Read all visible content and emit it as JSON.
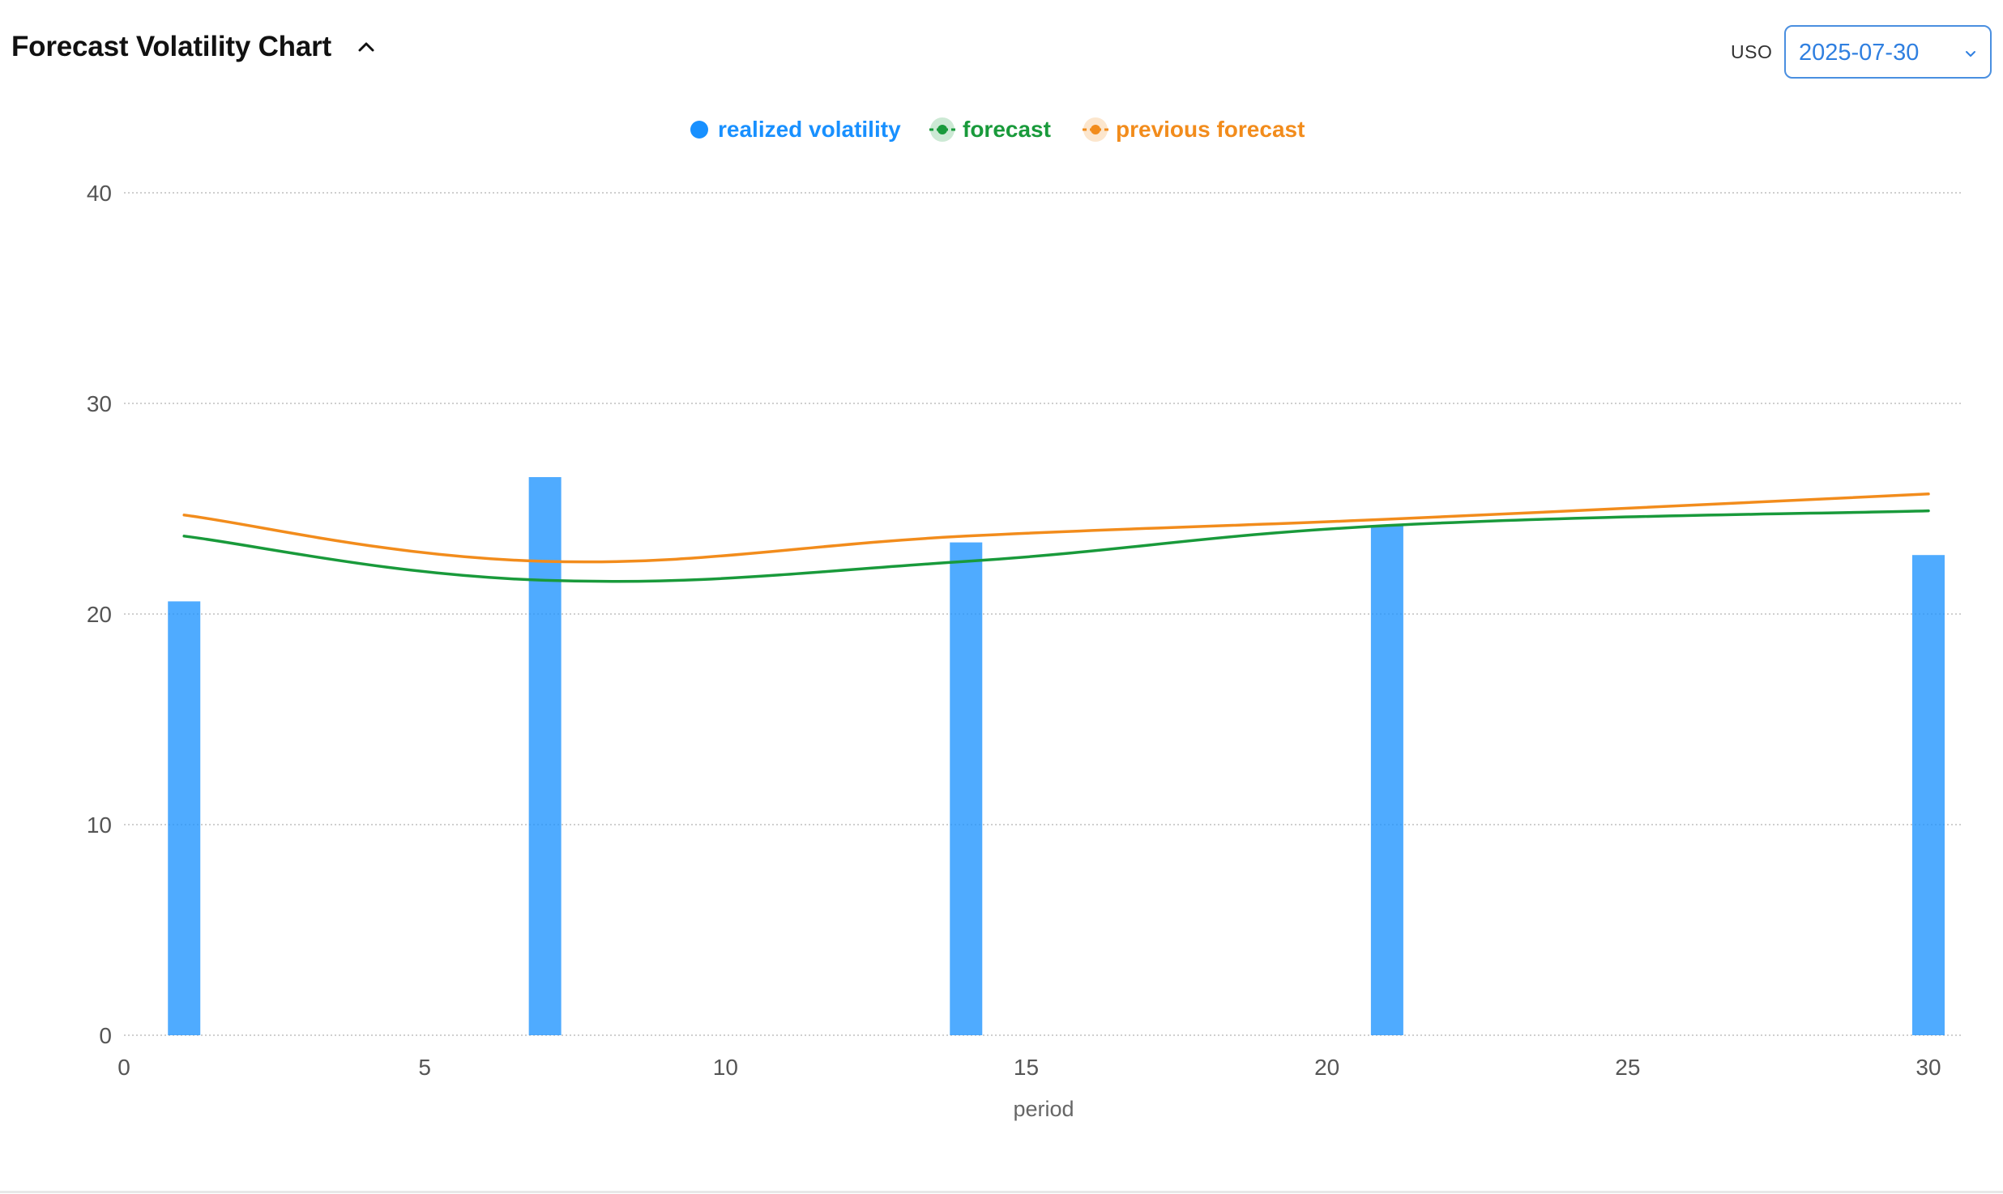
{
  "header": {
    "title": "Forecast Volatility Chart",
    "ticker": "USO",
    "selected_date": "2025-07-30"
  },
  "icons": {
    "collapse": "chevron-up-icon",
    "dropdown": "chevron-down-icon"
  },
  "colors": {
    "realized": "#1890ff",
    "forecast": "#199a3b",
    "previous_forecast": "#f28c1c",
    "grid": "#bfbfbf",
    "axis_text": "#555555"
  },
  "legend": [
    {
      "name": "realized volatility"
    },
    {
      "name": "forecast"
    },
    {
      "name": "previous forecast"
    }
  ],
  "chart_data": {
    "type": "bar",
    "title": "Forecast Volatility Chart",
    "xlabel": "period",
    "ylabel": "",
    "xlim": [
      0,
      30
    ],
    "ylim": [
      0,
      40
    ],
    "x_ticks": [
      0,
      5,
      10,
      15,
      20,
      25,
      30
    ],
    "y_ticks": [
      0,
      10,
      20,
      30,
      40
    ],
    "grid": true,
    "legend_position": "top-center",
    "series": [
      {
        "name": "realized volatility",
        "type": "bar",
        "x": [
          1,
          7,
          14,
          21,
          30
        ],
        "values": [
          20.6,
          26.5,
          23.4,
          24.2,
          22.8
        ]
      },
      {
        "name": "forecast",
        "type": "line",
        "smooth": true,
        "x": [
          1,
          7,
          14,
          21,
          30
        ],
        "values": [
          23.7,
          21.6,
          22.5,
          24.2,
          24.9
        ]
      },
      {
        "name": "previous forecast",
        "type": "line",
        "smooth": true,
        "x": [
          1,
          7,
          14,
          21,
          30
        ],
        "values": [
          24.7,
          22.5,
          23.7,
          24.5,
          25.7
        ]
      }
    ]
  }
}
